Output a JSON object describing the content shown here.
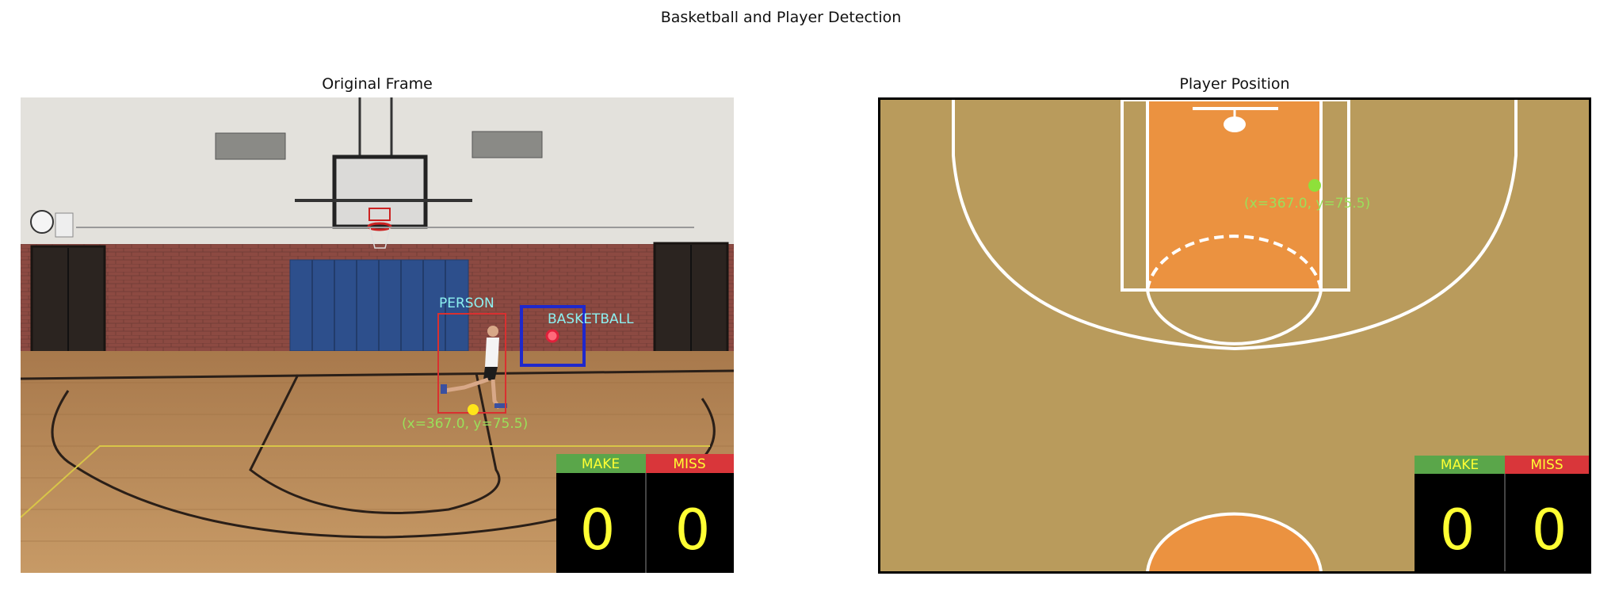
{
  "figure": {
    "title": "Basketball and Player Detection"
  },
  "left_panel": {
    "title": "Original Frame",
    "detections": {
      "person_label": "PERSON",
      "ball_label": "BASKETBALL",
      "coord_text": "(x=367.0, y=75.5)"
    },
    "scoreboard": {
      "make_label": "MAKE",
      "miss_label": "MISS",
      "make_value": "0",
      "miss_value": "0"
    }
  },
  "right_panel": {
    "title": "Player Position",
    "coord_text": "(x=367.0, y=75.5)",
    "scoreboard": {
      "make_label": "MAKE",
      "miss_label": "MISS",
      "make_value": "0",
      "miss_value": "0"
    }
  },
  "colors": {
    "court_wood": "#b99b5c",
    "paint_orange": "#eb9240",
    "make_green": "#5aa64a",
    "miss_red": "#d9363a",
    "score_yellow": "#ffff33",
    "label_cyan": "#8cf0f0",
    "coord_green": "#9ae05a",
    "player_marker": "#8ee03a"
  }
}
